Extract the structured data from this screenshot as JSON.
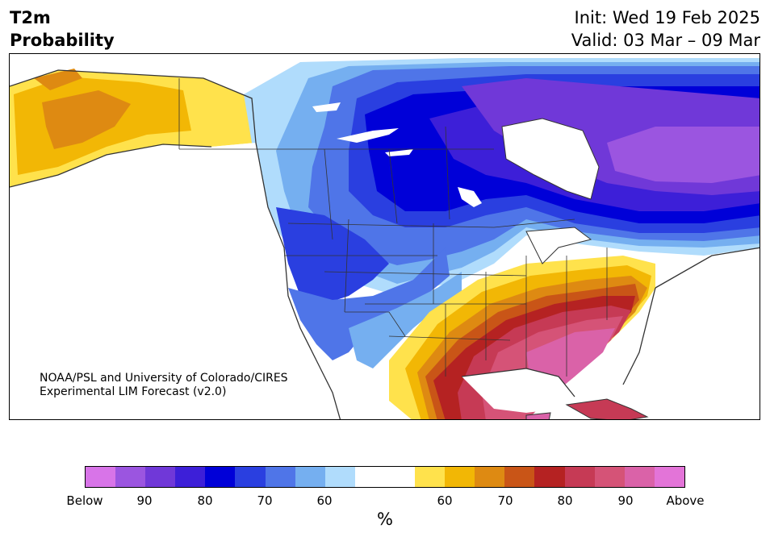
{
  "header": {
    "title_line1": "T2m",
    "title_line2": "Probability",
    "init_text": "Init: Wed 19 Feb 2025",
    "valid_text": "Valid: 03 Mar – 09 Mar"
  },
  "credit": {
    "line1": "NOAA/PSL and University of Colorado/CIRES",
    "line2": "Experimental LIM Forecast (v2.0)"
  },
  "colorbar": {
    "unit": "%",
    "colors": [
      "#d874e8",
      "#9b55e0",
      "#7038d8",
      "#3d1fd8",
      "#0000d8",
      "#2a3fe0",
      "#4f75e8",
      "#75aff0",
      "#b0dcfc",
      "#ffffff",
      "#ffffff",
      "#ffe24c",
      "#f2b705",
      "#de8a12",
      "#c95517",
      "#b52222",
      "#c63a55",
      "#d55377",
      "#da62a8",
      "#e374d8"
    ],
    "ticks": [
      "Below",
      "90",
      "80",
      "70",
      "60",
      "60",
      "70",
      "80",
      "90",
      "Above"
    ]
  },
  "map": {
    "regions": {
      "below": "Western & central North America, Canada",
      "above": "Southern & Eastern United States, Alaska"
    }
  }
}
